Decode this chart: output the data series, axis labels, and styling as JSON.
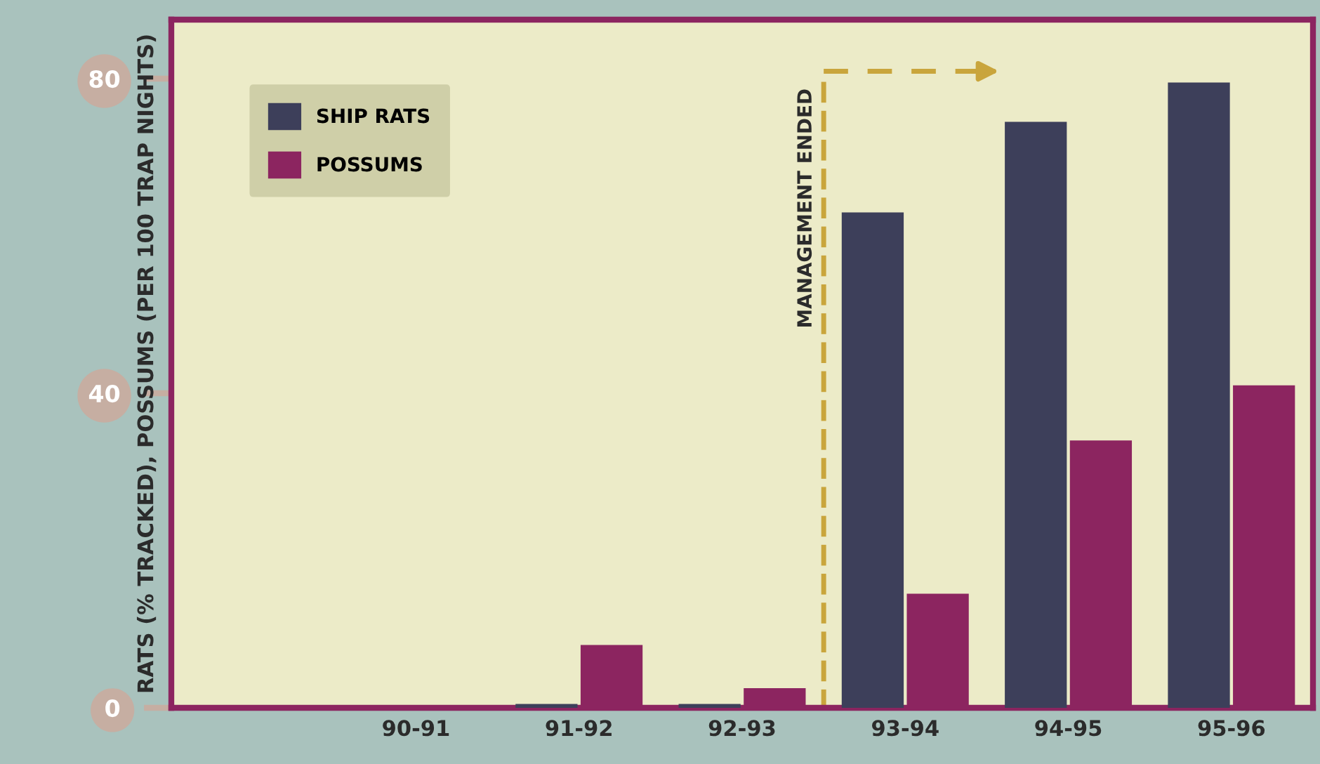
{
  "chart_data": {
    "type": "bar",
    "ylabel": "RATS (% TRACKED), POSSUMS (PER 100 TRAP NIGHTS)",
    "categories": [
      null,
      "90-91",
      "91-92",
      "92-93",
      "93-94",
      "94-95",
      "95-96"
    ],
    "series": [
      {
        "name": "SHIP RATS",
        "color": "#3d3f5a",
        "values": [
          null,
          0,
          0.5,
          0.5,
          63,
          74.5,
          79.5
        ]
      },
      {
        "name": "POSSUMS",
        "color": "#8c2560",
        "values": [
          null,
          0,
          8,
          2.5,
          14.5,
          34,
          41
        ]
      }
    ],
    "ylim": [
      0,
      87.5
    ],
    "yticks": [
      0,
      40,
      80
    ],
    "legend": "top left",
    "annotations": [
      "MANAGEMENT ENDED"
    ]
  }
}
